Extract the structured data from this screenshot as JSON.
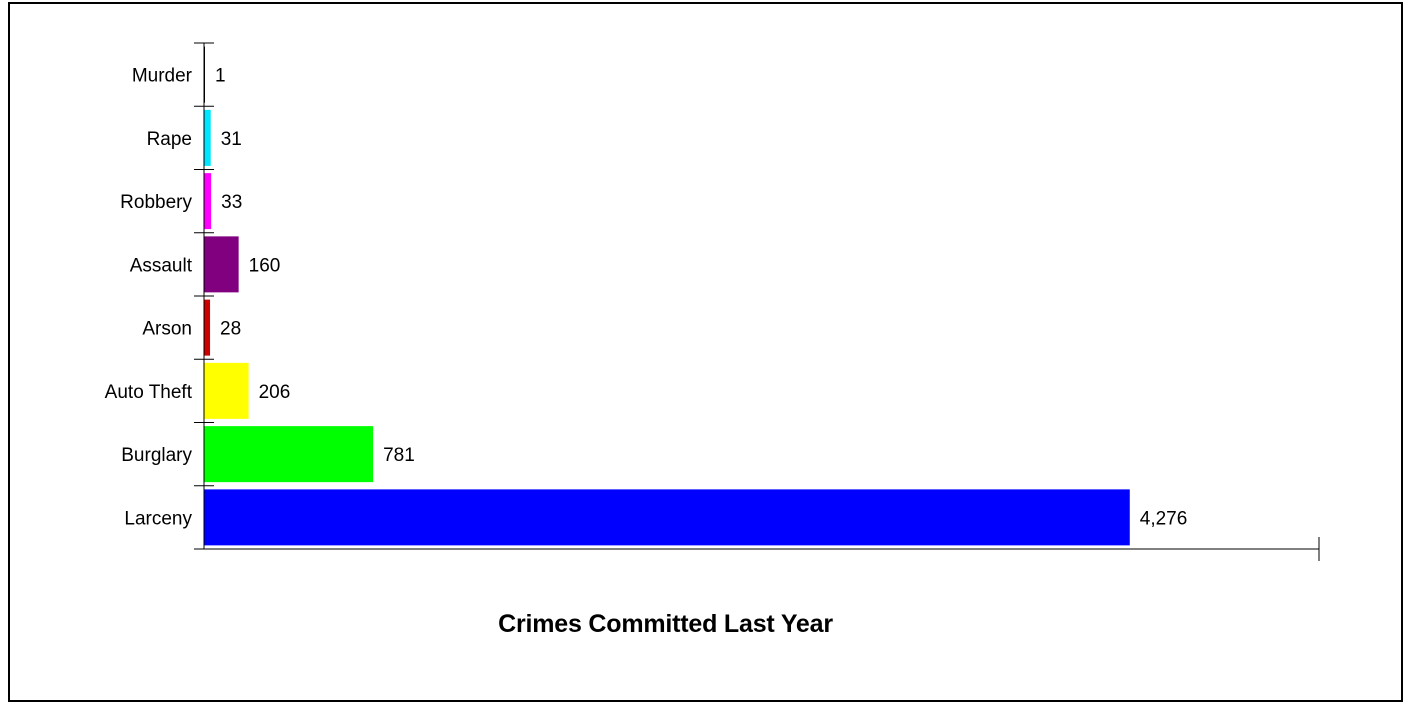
{
  "chart_data": {
    "type": "bar",
    "orientation": "horizontal",
    "title": "Crimes Committed Last Year",
    "xlabel": "",
    "ylabel": "",
    "categories": [
      "Murder",
      "Rape",
      "Robbery",
      "Assault",
      "Arson",
      "Auto Theft",
      "Burglary",
      "Larceny"
    ],
    "values": [
      1,
      31,
      33,
      160,
      28,
      206,
      781,
      4276
    ],
    "value_labels": [
      "1",
      "31",
      "33",
      "160",
      "28",
      "206",
      "781",
      "4,276"
    ],
    "colors": [
      "#000000",
      "#00e5ff",
      "#ff00ff",
      "#800080",
      "#cc0000",
      "#ffff00",
      "#00ff00",
      "#0000ff"
    ],
    "xlim": [
      0,
      5150
    ],
    "grid": false,
    "legend": "none"
  }
}
